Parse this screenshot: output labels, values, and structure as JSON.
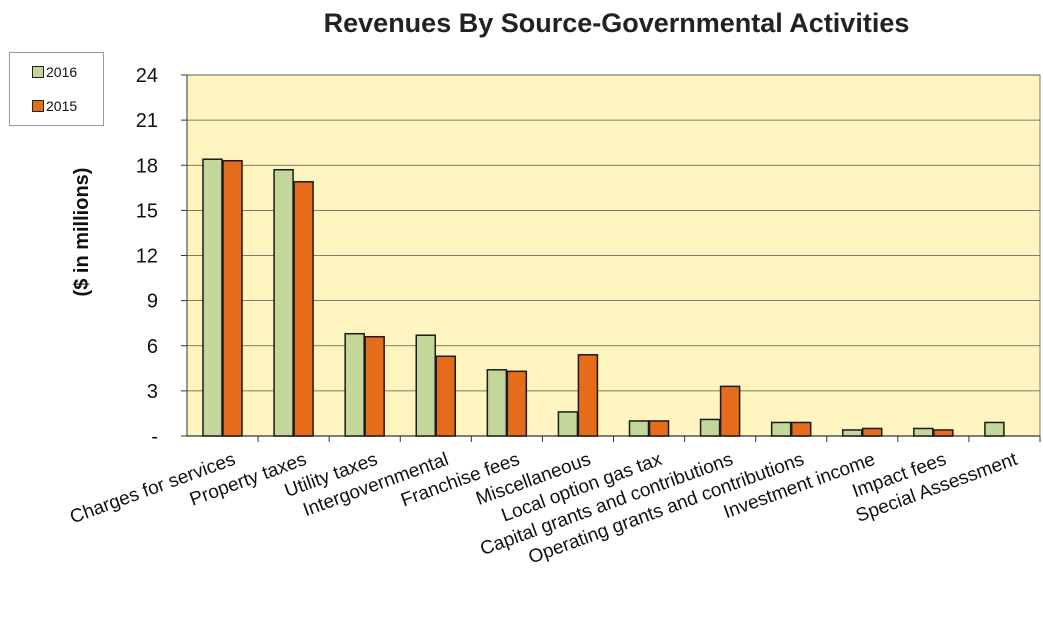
{
  "chart_data": {
    "type": "bar",
    "title": "Revenues By Source-Governmental Activities",
    "ylabel": "($ in millions)",
    "xlabel": "",
    "ylim": [
      0,
      24
    ],
    "yticks": [
      0,
      3,
      6,
      9,
      12,
      15,
      18,
      21,
      24
    ],
    "ytick_labels": [
      "-",
      "3",
      "6",
      "9",
      "12",
      "15",
      "18",
      "21",
      "24"
    ],
    "grid": true,
    "legend_position": "top-left",
    "categories": [
      "Charges for services",
      "Property taxes",
      "Utility taxes",
      "Intergovernmental",
      "Franchise fees",
      "Miscellaneous",
      "Local option gas tax",
      "Capital grants and contributions",
      "Operating grants and contributions",
      "Investment income",
      "Impact fees",
      "Special Assessment"
    ],
    "series": [
      {
        "name": "2016",
        "color": "#c4d79b",
        "values": [
          18.4,
          17.7,
          6.8,
          6.7,
          4.4,
          1.6,
          1.0,
          1.1,
          0.9,
          0.4,
          0.5,
          0.9
        ]
      },
      {
        "name": "2015",
        "color": "#e46c1a",
        "values": [
          18.3,
          16.9,
          6.6,
          5.3,
          4.3,
          5.4,
          1.0,
          3.3,
          0.9,
          0.5,
          0.4,
          null
        ]
      }
    ],
    "plot_background": "#fdf4c0"
  }
}
